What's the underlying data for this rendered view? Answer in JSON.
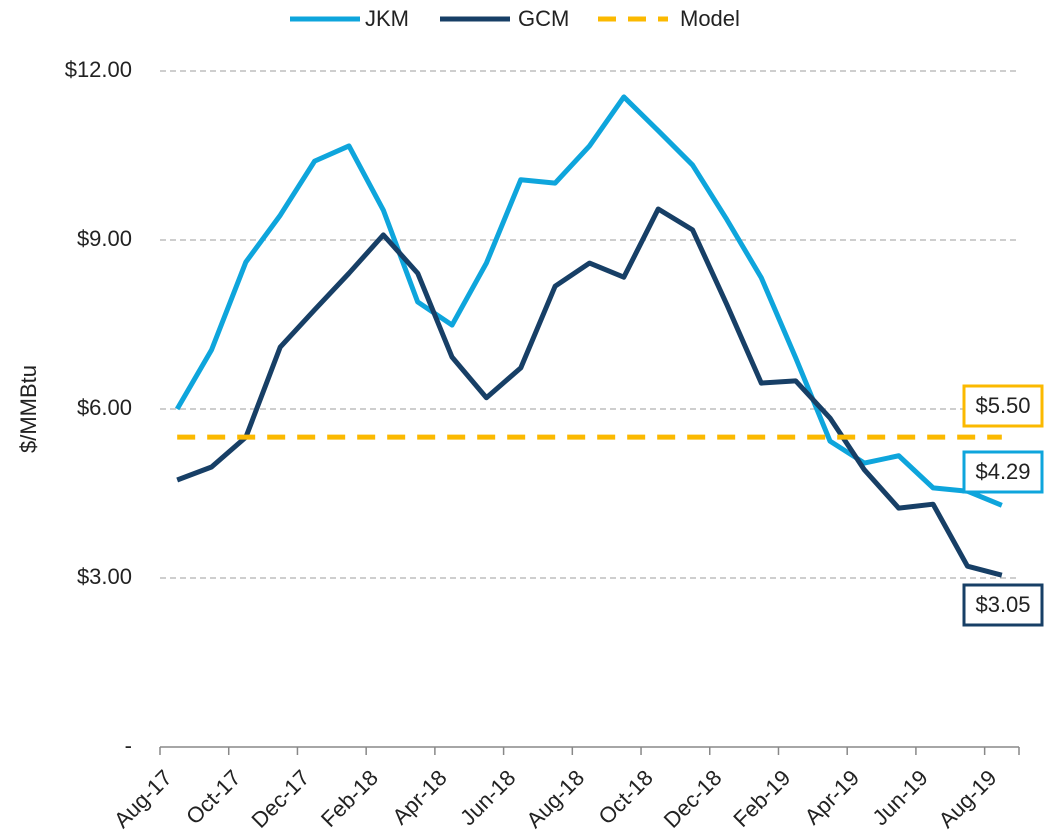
{
  "chart_data": {
    "type": "line",
    "y_label": "$/MMBtu",
    "categories": [
      "Aug-17",
      null,
      "Oct-17",
      null,
      "Dec-17",
      null,
      "Feb-18",
      null,
      "Apr-18",
      null,
      "Jun-18",
      null,
      "Aug-18",
      null,
      "Oct-18",
      null,
      "Dec-18",
      null,
      "Feb-19",
      null,
      "Apr-19",
      null,
      "Jun-19",
      null,
      "Aug-19"
    ],
    "series": [
      {
        "name": "JKM",
        "color": "#0ea5dc",
        "dash": false,
        "end_label": "$4.29",
        "values": [
          6.0,
          7.05,
          8.61,
          9.44,
          10.4,
          10.67,
          9.53,
          7.9,
          7.49,
          8.59,
          10.07,
          10.01,
          10.67,
          11.54,
          10.94,
          10.33,
          9.36,
          8.33,
          6.91,
          5.43,
          5.04,
          5.17,
          4.6,
          4.54,
          4.29
        ]
      },
      {
        "name": "GCM",
        "color": "#173f66",
        "dash": false,
        "end_label": "$3.05",
        "values": [
          4.74,
          4.97,
          5.5,
          7.1,
          7.76,
          8.41,
          9.09,
          8.41,
          6.92,
          6.2,
          6.73,
          8.18,
          8.59,
          8.34,
          9.55,
          9.18,
          7.85,
          6.46,
          6.5,
          5.84,
          4.92,
          4.24,
          4.31,
          3.21,
          3.05
        ]
      },
      {
        "name": "Model",
        "color": "#fbb900",
        "dash": true,
        "end_label": "$5.50",
        "values": [
          5.5,
          5.5,
          5.5,
          5.5,
          5.5,
          5.5,
          5.5,
          5.5,
          5.5,
          5.5,
          5.5,
          5.5,
          5.5,
          5.5,
          5.5,
          5.5,
          5.5,
          5.5,
          5.5,
          5.5,
          5.5,
          5.5,
          5.5,
          5.5,
          5.5
        ]
      }
    ],
    "ylim": [
      0,
      12
    ],
    "yticks": [
      {
        "value": 0,
        "label": "-"
      },
      {
        "value": 3,
        "label": "$3.00"
      },
      {
        "value": 6,
        "label": "$6.00"
      },
      {
        "value": 9,
        "label": "$9.00"
      },
      {
        "value": 12,
        "label": "$12.00"
      }
    ],
    "grid": true,
    "legend": "top"
  }
}
